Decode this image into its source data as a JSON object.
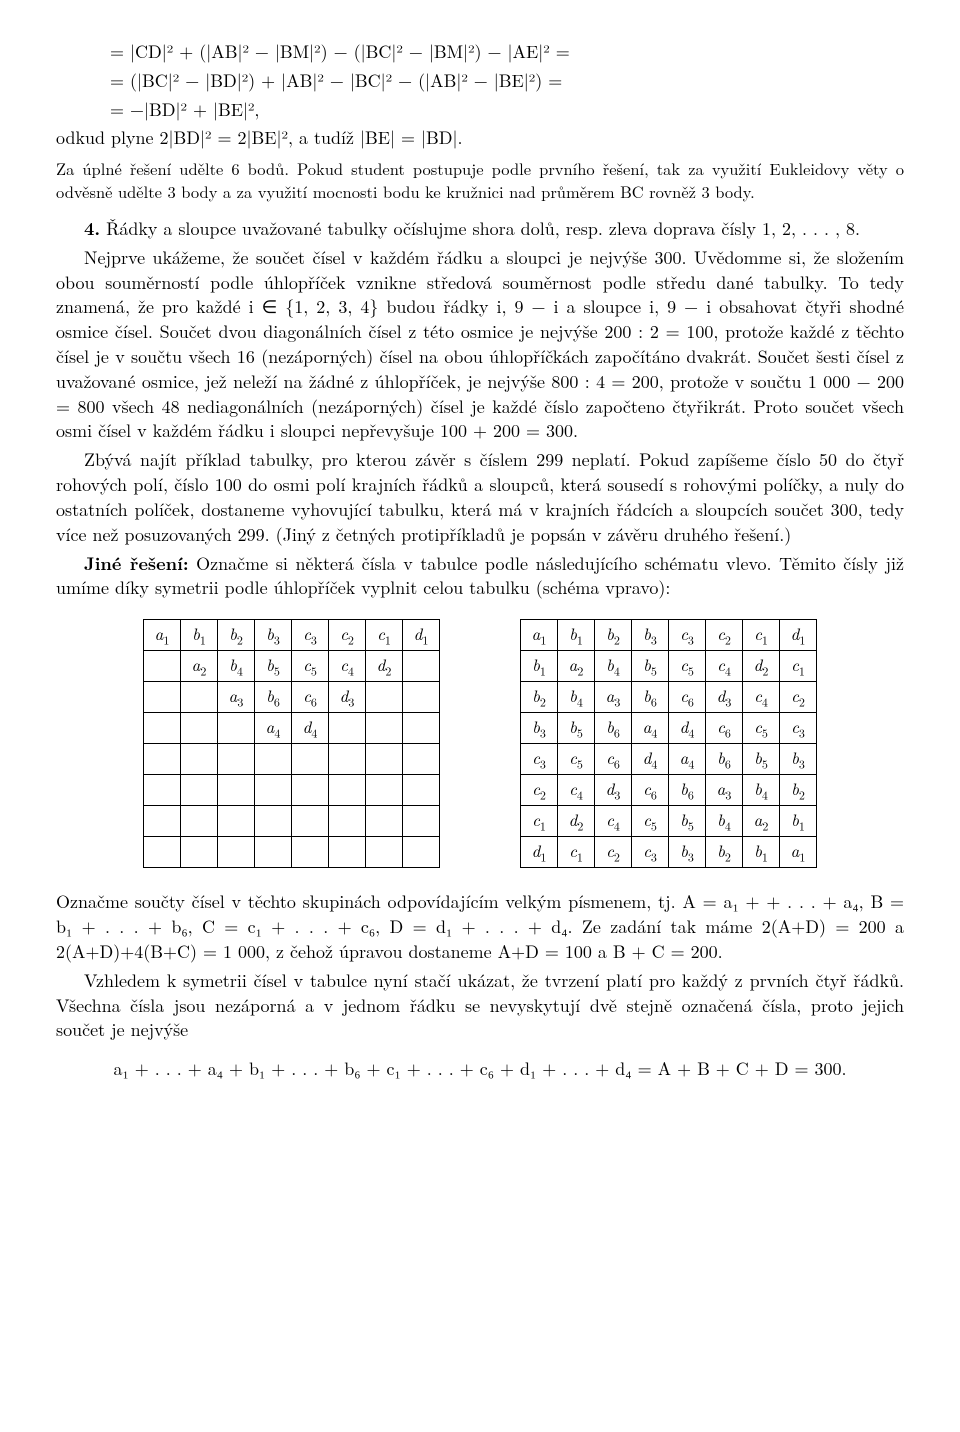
{
  "eq_lines": [
    "= |CD|² + (|AB|² − |BM|²) − (|BC|² − |BM|²) − |AE|² =",
    "= (|BC|² − |BD|²) + |AB|² − |BC|² − (|AB|² − |BE|²) =",
    "= −|BD|² + |BE|²,"
  ],
  "p_odkud": "odkud plyne 2|BD|² = 2|BE|², a tudíž |BE| = |BD|.",
  "p_zauplne": "Za úplné řešení udělte 6 bodů. Pokud student postupuje podle prvního řešení, tak za využití Eukleidovy věty o odvěsně udělte 3 body a za využití mocnosti bodu ke kružnici nad průměrem BC rovněž 3 body.",
  "p_4a": "4. Řádky a sloupce uvažované tabulky očíslujme shora dolů, resp. zleva doprava čísly 1, 2, . . . , 8.",
  "p_4b": "Nejprve ukážeme, že součet čísel v každém řádku a sloupci je nejvýše 300. Uvědomme si, že složením obou souměrností podle úhlopříček vznikne středová souměrnost podle středu dané tabulky. To tedy znamená, že pro každé i ∈ {1, 2, 3, 4} budou řádky i, 9 − i a sloupce i, 9 − i obsahovat čtyři shodné osmice čísel. Součet dvou diagonálních čísel z této osmice je nejvýše 200 : 2 = 100, protože každé z těchto čísel je v součtu všech 16 (nezáporných) čísel na obou úhlopříčkách započítáno dvakrát. Součet šesti čísel z uvažované osmice, jež neleží na žádné z úhlopříček, je nejvýše 800 : 4 = 200, protože v součtu 1 000 − 200 = 800 všech 48 nediagonálních (nezáporných) čísel je každé číslo započteno čtyřikrát. Proto součet všech osmi čísel v každém řádku i sloupci nepřevyšuje 100 + 200 = 300.",
  "p_4c": "Zbývá najít příklad tabulky, pro kterou závěr s číslem 299 neplatí. Pokud zapíšeme číslo 50 do čtyř rohových polí, číslo 100 do osmi polí krajních řádků a sloupců, která sousedí s rohovými políčky, a nuly do ostatních políček, dostaneme vyhovující tabulku, která má v krajních řádcích a sloupcích součet 300, tedy více než posuzovaných 299. (Jiný z četných protipříkladů je popsán v závěru druhého řešení.)",
  "p_jine_lead": "Jiné řešení:",
  "p_jine_rest": " Označme si některá čísla v tabulce podle následujícího schématu vlevo. Těmito čísly již umíme díky symetrii podle úhlopříček vyplnit celou tabulku (schéma vpravo):",
  "left_table": [
    [
      "a1",
      "b1",
      "b2",
      "b3",
      "c3",
      "c2",
      "c1",
      "d1"
    ],
    [
      "",
      "a2",
      "b4",
      "b5",
      "c5",
      "c4",
      "d2",
      ""
    ],
    [
      "",
      "",
      "a3",
      "b6",
      "c6",
      "d3",
      "",
      ""
    ],
    [
      "",
      "",
      "",
      "a4",
      "d4",
      "",
      "",
      ""
    ],
    [
      "",
      "",
      "",
      "",
      "",
      "",
      "",
      ""
    ],
    [
      "",
      "",
      "",
      "",
      "",
      "",
      "",
      ""
    ],
    [
      "",
      "",
      "",
      "",
      "",
      "",
      "",
      ""
    ],
    [
      "",
      "",
      "",
      "",
      "",
      "",
      "",
      ""
    ]
  ],
  "right_table": [
    [
      "a1",
      "b1",
      "b2",
      "b3",
      "c3",
      "c2",
      "c1",
      "d1"
    ],
    [
      "b1",
      "a2",
      "b4",
      "b5",
      "c5",
      "c4",
      "d2",
      "c1"
    ],
    [
      "b2",
      "b4",
      "a3",
      "b6",
      "c6",
      "d3",
      "c4",
      "c2"
    ],
    [
      "b3",
      "b5",
      "b6",
      "a4",
      "d4",
      "c6",
      "c5",
      "c3"
    ],
    [
      "c3",
      "c5",
      "c6",
      "d4",
      "a4",
      "b6",
      "b5",
      "b3"
    ],
    [
      "c2",
      "c4",
      "d3",
      "c6",
      "b6",
      "a3",
      "b4",
      "b2"
    ],
    [
      "c1",
      "d2",
      "c4",
      "c5",
      "b5",
      "b4",
      "a2",
      "b1"
    ],
    [
      "d1",
      "c1",
      "c2",
      "c3",
      "b3",
      "b2",
      "b1",
      "a1"
    ]
  ],
  "p_oznacme": "Označme součty čísel v těchto skupinách odpovídajícím velkým písmenem, tj. A = a₁ + + . . . + a₄, B = b₁ + . . . + b₆, C = c₁ + . . . + c₆, D = d₁ + . . . + d₄. Ze zadání tak máme 2(A+D) = 200 a 2(A+D)+4(B+C) = 1 000, z čehož úpravou dostaneme A+D = 100 a B + C = 200.",
  "p_vzhledem": "Vzhledem k symetrii čísel v tabulce nyní stačí ukázat, že tvrzení platí pro každý z prvních čtyř řádků. Všechna čísla jsou nezáporná a v jednom řádku se nevyskytují dvě stejně označená čísla, proto jejich součet je nejvýše",
  "final_eq": "a₁ + . . . + a₄ + b₁ + . . . + b₆ + c₁ + . . . + c₆ + d₁ + . . . + d₄ = A + B + C + D = 300."
}
